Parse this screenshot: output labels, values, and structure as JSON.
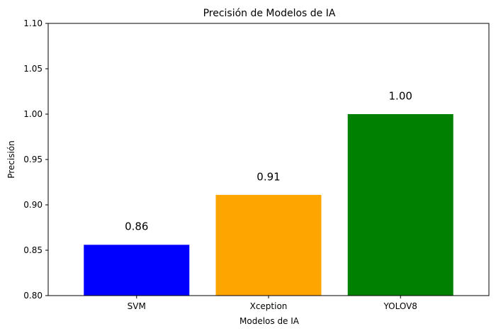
{
  "chart_data": {
    "type": "bar",
    "title": "Precisión de Modelos de IA",
    "xlabel": "Modelos de IA",
    "ylabel": "Precisión",
    "categories": [
      "SVM",
      "Xception",
      "YOLOV8"
    ],
    "values": [
      0.856,
      0.911,
      1.0
    ],
    "data_labels": [
      "0.86",
      "0.91",
      "1.00"
    ],
    "colors": [
      "#0000ff",
      "#ffa500",
      "#008000"
    ],
    "ylim": [
      0.8,
      1.1
    ],
    "yticks": [
      0.8,
      0.85,
      0.9,
      0.95,
      1.0,
      1.05,
      1.1
    ],
    "ytick_labels": [
      "0.80",
      "0.85",
      "0.90",
      "0.95",
      "1.00",
      "1.05",
      "1.10"
    ],
    "grid": false,
    "legend": "none"
  }
}
